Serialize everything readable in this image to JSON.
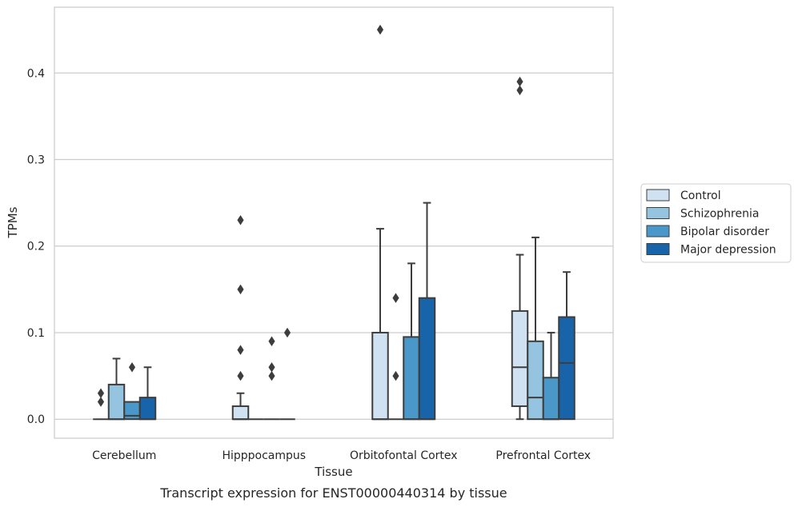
{
  "chart_data": {
    "type": "box",
    "title": "Transcript expression for ENST00000440314 by tissue",
    "xlabel": "Tissue",
    "ylabel": "TPMs",
    "ylim": [
      -0.022,
      0.476
    ],
    "yticks": [
      "0.0",
      "0.1",
      "0.2",
      "0.3",
      "0.4"
    ],
    "ytick_values": [
      0.0,
      0.1,
      0.2,
      0.3,
      0.4
    ],
    "grid": "horizontal",
    "legend_position": "right",
    "categories": [
      "Cerebellum",
      "Hipppocampus",
      "Orbitofontal Cortex",
      "Prefrontal Cortex"
    ],
    "series": [
      {
        "name": "Control",
        "color": "#d0e1f2",
        "boxes": [
          {
            "q1": 0.0,
            "median": 0.0,
            "q3": 0.0,
            "whislo": 0.0,
            "whishi": 0.0,
            "fliers": [
              0.02,
              0.03
            ]
          },
          {
            "q1": 0.0,
            "median": 0.0,
            "q3": 0.015,
            "whislo": 0.0,
            "whishi": 0.03,
            "fliers": [
              0.05,
              0.08,
              0.15,
              0.23
            ]
          },
          {
            "q1": 0.0,
            "median": 0.0,
            "q3": 0.1,
            "whislo": 0.0,
            "whishi": 0.22,
            "fliers": [
              0.45
            ]
          },
          {
            "q1": 0.015,
            "median": 0.06,
            "q3": 0.125,
            "whislo": 0.0,
            "whishi": 0.19,
            "fliers": [
              0.38,
              0.39
            ]
          }
        ]
      },
      {
        "name": "Schizophrenia",
        "color": "#94c4df",
        "boxes": [
          {
            "q1": 0.0,
            "median": 0.0,
            "q3": 0.04,
            "whislo": 0.0,
            "whishi": 0.07,
            "fliers": []
          },
          {
            "q1": 0.0,
            "median": 0.0,
            "q3": 0.0,
            "whislo": 0.0,
            "whishi": 0.0,
            "fliers": []
          },
          {
            "q1": 0.0,
            "median": 0.0,
            "q3": 0.0,
            "whislo": 0.0,
            "whishi": 0.0,
            "fliers": [
              0.05,
              0.14
            ]
          },
          {
            "q1": 0.0,
            "median": 0.025,
            "q3": 0.09,
            "whislo": 0.0,
            "whishi": 0.21,
            "fliers": []
          }
        ]
      },
      {
        "name": "Bipolar disorder",
        "color": "#4a98c9",
        "boxes": [
          {
            "q1": 0.0,
            "median": 0.004,
            "q3": 0.02,
            "whislo": 0.0,
            "whishi": 0.02,
            "fliers": [
              0.06
            ]
          },
          {
            "q1": 0.0,
            "median": 0.0,
            "q3": 0.0,
            "whislo": 0.0,
            "whishi": 0.0,
            "fliers": [
              0.05,
              0.06,
              0.09
            ]
          },
          {
            "q1": 0.0,
            "median": 0.0,
            "q3": 0.095,
            "whislo": 0.0,
            "whishi": 0.18,
            "fliers": []
          },
          {
            "q1": 0.0,
            "median": 0.0,
            "q3": 0.048,
            "whislo": 0.0,
            "whishi": 0.1,
            "fliers": []
          }
        ]
      },
      {
        "name": "Major depression",
        "color": "#1764ab",
        "boxes": [
          {
            "q1": 0.0,
            "median": 0.0,
            "q3": 0.025,
            "whislo": 0.0,
            "whishi": 0.06,
            "fliers": []
          },
          {
            "q1": 0.0,
            "median": 0.0,
            "q3": 0.0,
            "whislo": 0.0,
            "whishi": 0.0,
            "fliers": [
              0.1
            ]
          },
          {
            "q1": 0.0,
            "median": 0.0,
            "q3": 0.14,
            "whislo": 0.0,
            "whishi": 0.25,
            "fliers": []
          },
          {
            "q1": 0.0,
            "median": 0.065,
            "q3": 0.118,
            "whislo": 0.0,
            "whishi": 0.17,
            "fliers": []
          }
        ]
      }
    ]
  }
}
